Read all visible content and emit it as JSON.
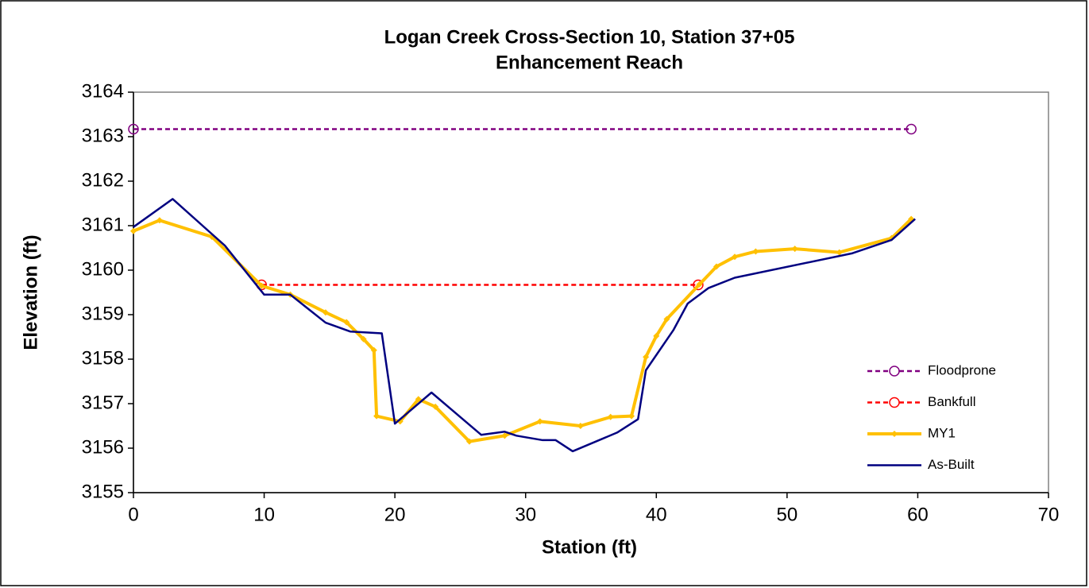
{
  "chart_data": {
    "type": "line",
    "title": "Logan Creek Cross-Section 10, Station 37+05",
    "subtitle": "Enhancement Reach",
    "x_label": "Station (ft)",
    "y_label": "Elevation (ft)",
    "xlim": [
      0,
      70
    ],
    "xticks": [
      0,
      10,
      20,
      30,
      40,
      50,
      60,
      70
    ],
    "ylim": [
      3155,
      3164
    ],
    "yticks": [
      3155,
      3156,
      3157,
      3158,
      3159,
      3160,
      3161,
      3162,
      3163,
      3164
    ],
    "grid": false,
    "legend": "lower right",
    "series": [
      {
        "name": "Floodprone",
        "color": "#800080",
        "dash": true,
        "marker": "circle",
        "x": [
          0,
          59.5
        ],
        "values": [
          3163.17,
          3163.17
        ]
      },
      {
        "name": "Bankfull",
        "color": "#ff0000",
        "dash": true,
        "marker": "circle",
        "x": [
          9.8,
          43.2
        ],
        "values": [
          3159.67,
          3159.67
        ]
      },
      {
        "name": "MY1",
        "color": "#ffc000",
        "dash": false,
        "marker": "diamond",
        "x": [
          0,
          2,
          6,
          9.8,
          12,
          14.7,
          16.3,
          17.6,
          18.4,
          18.6,
          20.4,
          21.8,
          23.1,
          25.7,
          28.4,
          31.1,
          34.2,
          36.5,
          38.1,
          39.2,
          40.0,
          40.8,
          43.3,
          44.6,
          46,
          47.6,
          50.6,
          54,
          58,
          59.5
        ],
        "values": [
          3160.88,
          3161.12,
          3160.75,
          3159.65,
          3159.45,
          3159.05,
          3158.83,
          3158.45,
          3158.2,
          3156.72,
          3156.6,
          3157.1,
          3156.93,
          3156.15,
          3156.28,
          3156.6,
          3156.5,
          3156.7,
          3156.72,
          3158.05,
          3158.52,
          3158.9,
          3159.68,
          3160.08,
          3160.3,
          3160.42,
          3160.48,
          3160.4,
          3160.72,
          3161.15
        ]
      },
      {
        "name": "As-Built",
        "color": "#000080",
        "dash": false,
        "marker": "none",
        "x": [
          0,
          3,
          7,
          10,
          12,
          14.7,
          16.6,
          19,
          20,
          22.8,
          24,
          26.6,
          28.4,
          29.3,
          31.3,
          32.3,
          33.6,
          37,
          38.6,
          39.2,
          41.3,
          42.4,
          44,
          46,
          55,
          58,
          59.8
        ],
        "values": [
          3160.97,
          3161.6,
          3160.55,
          3159.45,
          3159.45,
          3158.82,
          3158.62,
          3158.58,
          3156.55,
          3157.25,
          3156.95,
          3156.3,
          3156.37,
          3156.28,
          3156.18,
          3156.18,
          3155.93,
          3156.35,
          3156.65,
          3157.75,
          3158.65,
          3159.25,
          3159.6,
          3159.83,
          3160.38,
          3160.68,
          3161.15
        ]
      }
    ]
  }
}
